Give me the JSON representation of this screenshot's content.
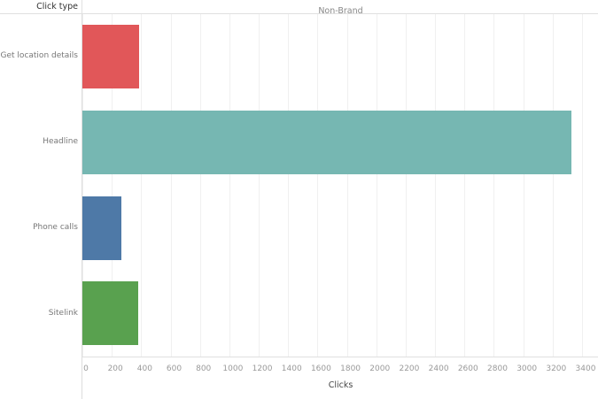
{
  "header": {
    "row_field": "Click type",
    "column_header": "Non-Brand"
  },
  "axis": {
    "title": "Clicks",
    "ticks": [
      "0",
      "200",
      "400",
      "600",
      "800",
      "1000",
      "1200",
      "1400",
      "1600",
      "1800",
      "2000",
      "2200",
      "2400",
      "2600",
      "2800",
      "3000",
      "3200",
      "3400"
    ]
  },
  "rows": [
    {
      "label": "Get location details",
      "color": "#e15759"
    },
    {
      "label": "Headline",
      "color": "#76b7b2"
    },
    {
      "label": "Phone calls",
      "color": "#4e79a7"
    },
    {
      "label": "Sitelink",
      "color": "#59a14f"
    }
  ],
  "chart_data": {
    "type": "bar",
    "orientation": "horizontal",
    "title": "Non-Brand",
    "categories": [
      "Get location details",
      "Headline",
      "Phone calls",
      "Sitelink"
    ],
    "values": [
      385,
      3325,
      265,
      380
    ],
    "colors": [
      "#e15759",
      "#76b7b2",
      "#4e79a7",
      "#59a14f"
    ],
    "xlabel": "Clicks",
    "ylabel": "Click type",
    "xlim": [
      0,
      3400
    ],
    "x_ticks": [
      0,
      200,
      400,
      600,
      800,
      1000,
      1200,
      1400,
      1600,
      1800,
      2000,
      2200,
      2400,
      2600,
      2800,
      3000,
      3200,
      3400
    ],
    "grid": true,
    "legend": "none"
  }
}
